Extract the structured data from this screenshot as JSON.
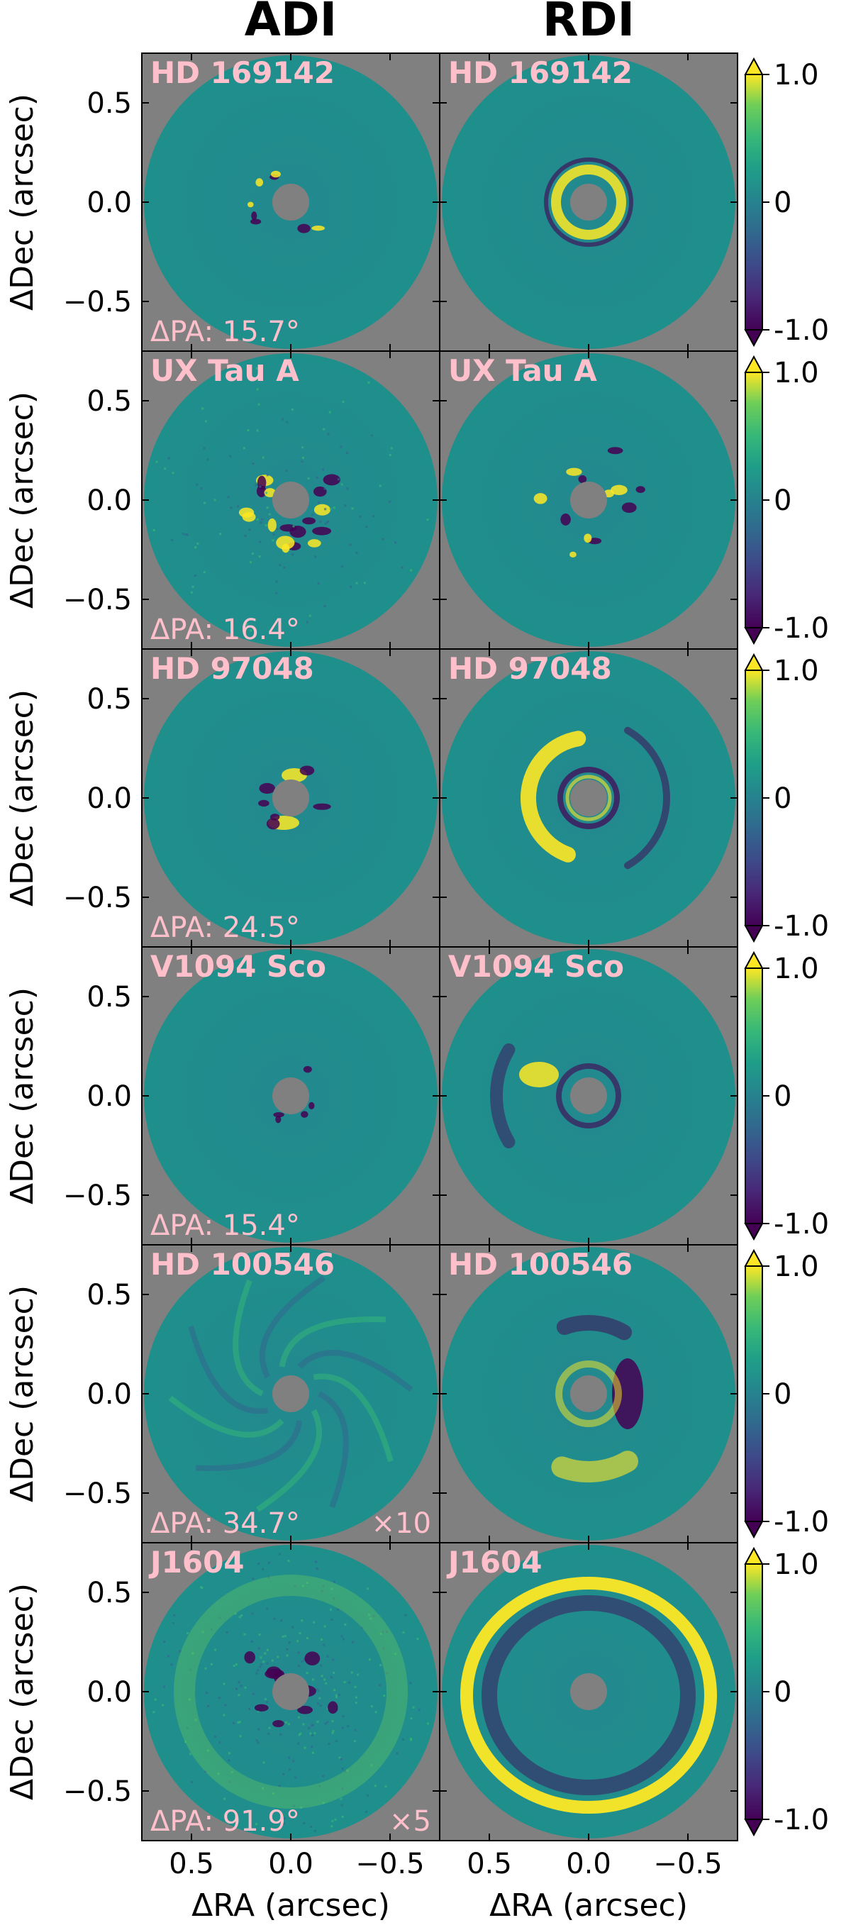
{
  "column_titles": [
    "ADI",
    "RDI"
  ],
  "rows": [
    {
      "target": "HD 169142",
      "dpa": "ΔPA: 15.7°",
      "scale": ""
    },
    {
      "target": "UX Tau A",
      "dpa": "ΔPA: 16.4°",
      "scale": ""
    },
    {
      "target": "HD 97048",
      "dpa": "ΔPA: 24.5°",
      "scale": ""
    },
    {
      "target": "V1094 Sco",
      "dpa": "ΔPA: 15.4°",
      "scale": ""
    },
    {
      "target": "HD 100546",
      "dpa": "ΔPA: 34.7°",
      "scale": "×10"
    },
    {
      "target": "J1604",
      "dpa": "ΔPA: 91.9°",
      "scale": "×5"
    }
  ],
  "axes": {
    "xlabel": "ΔRA (arcsec)",
    "ylabel": "ΔDec (arcsec)",
    "xticks": [
      "0.5",
      "0.0",
      "−0.5"
    ],
    "yticks": [
      "0.5",
      "0.0",
      "−0.5"
    ]
  },
  "colorbar": {
    "colormap": "viridis",
    "ticks": [
      "1.0",
      "0",
      "-1.0"
    ],
    "range": [
      -1.0,
      1.0
    ],
    "extend": "both"
  },
  "colors": {
    "background": "#808080",
    "low": "#440154",
    "mid": "#21908d",
    "high": "#fde725",
    "label": "#ffc0cb"
  },
  "chart_data": {
    "type": "heatmap",
    "layout": "6 rows × 2 columns",
    "columns": [
      "ADI",
      "RDI"
    ],
    "targets": [
      "HD 169142",
      "UX Tau A",
      "HD 97048",
      "V1094 Sco",
      "HD 100546",
      "J1604"
    ],
    "xlabel": "ΔRA (arcsec)",
    "ylabel": "ΔDec (arcsec)",
    "xlim": [
      0.75,
      -0.75
    ],
    "ylim": [
      -0.75,
      0.75
    ],
    "xticks": [
      0.5,
      0.0,
      -0.5
    ],
    "yticks": [
      -0.5,
      0.0,
      0.5
    ],
    "color_range": [
      -1.0,
      1.0
    ],
    "colorbar_ticks": [
      -1.0,
      0,
      1.0
    ],
    "delta_pa_deg": [
      15.7,
      16.4,
      24.5,
      15.4,
      34.7,
      91.9
    ],
    "adi_scale_factors": [
      1,
      1,
      1,
      1,
      10,
      5
    ]
  }
}
